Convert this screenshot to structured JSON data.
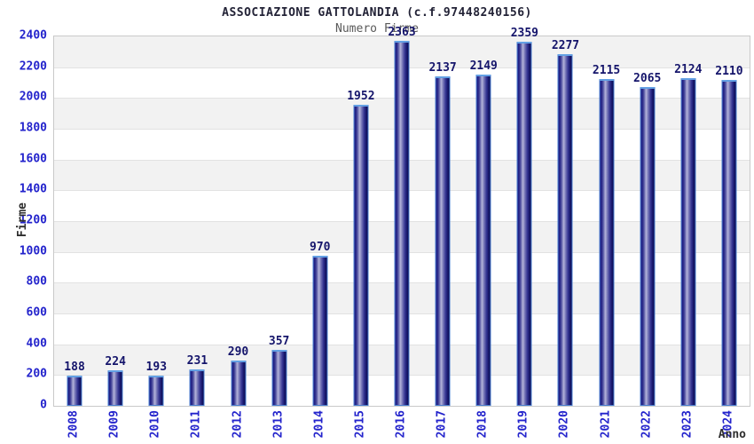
{
  "page": {
    "background": "#ffffff"
  },
  "header": {
    "title": "ASSOCIAZIONE GATTOLANDIA (c.f.97448240156)",
    "subtitle": "Numero Firme"
  },
  "chart_data": {
    "type": "bar",
    "title": "ASSOCIAZIONE GATTOLANDIA (c.f.97448240156)",
    "subtitle": "Numero Firme",
    "xlabel": "Anno",
    "ylabel": "Firme",
    "categories": [
      "2008",
      "2009",
      "2010",
      "2011",
      "2012",
      "2013",
      "2014",
      "2015",
      "2016",
      "2017",
      "2018",
      "2019",
      "2020",
      "2021",
      "2022",
      "2023",
      "2024"
    ],
    "values": [
      188,
      224,
      193,
      231,
      290,
      357,
      970,
      1952,
      2363,
      2137,
      2149,
      2359,
      2277,
      2115,
      2065,
      2124,
      2110
    ],
    "ylim": [
      0,
      2400
    ],
    "ytick_step": 200,
    "yticks": [
      0,
      200,
      400,
      600,
      800,
      1000,
      1200,
      1400,
      1600,
      1800,
      2000,
      2200,
      2400
    ],
    "grid": "horizontal-alternating-bands",
    "legend": "none",
    "value_labels_shown": true,
    "x_labels_rotated_degrees": 90,
    "colors": {
      "page_bg": "#ffffff",
      "title": "#222236",
      "subtitle": "#5a5a5a",
      "tick_label": "#2323cc",
      "value_label": "#15156b",
      "axis_label": "#2e2e2e",
      "band_gray": "#f2f2f2",
      "band_white": "#ffffff",
      "grid_line": "#e2e2e2",
      "plot_border": "#c9c9c9",
      "bar_border": "#4a7fd0",
      "bar_light": "#b3b3da",
      "bar_dark": "#0b0b52"
    }
  }
}
